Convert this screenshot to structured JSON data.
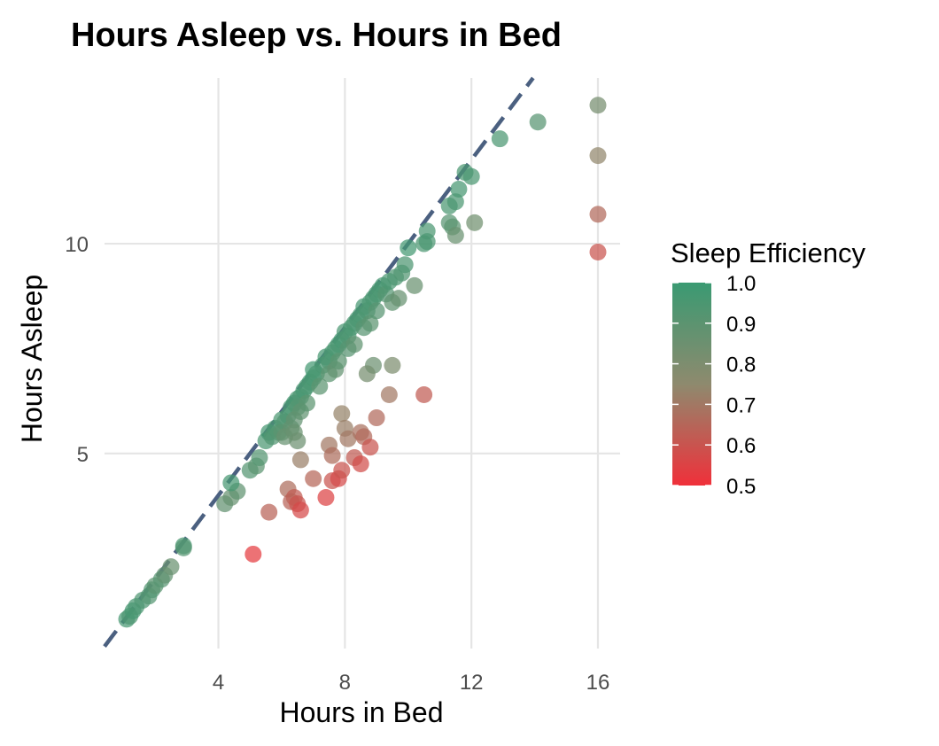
{
  "chart_data": {
    "type": "scatter",
    "title": "Hours Asleep vs. Hours in Bed",
    "xlabel": "Hours in Bed",
    "ylabel": "Hours Asleep",
    "xlim": [
      0.4,
      16.7
    ],
    "ylim": [
      0.35,
      13.95
    ],
    "x_ticks": [
      4,
      8,
      12,
      16
    ],
    "y_ticks": [
      5,
      10
    ],
    "grid": true,
    "reference_line": {
      "style": "dashed",
      "slope": 1,
      "intercept": 0,
      "color": "#4b6080"
    },
    "color_scale": {
      "name": "Sleep Efficiency",
      "min": 0.5,
      "max": 1.0,
      "low_color": "#f0303a",
      "mid_color": "#8e8a6e",
      "high_color": "#3a9a72",
      "ticks": [
        "0.5",
        "0.6",
        "0.7",
        "0.8",
        "0.9",
        "1.0"
      ],
      "legend_position": "right"
    },
    "points": [
      [
        1.1,
        1.05,
        0.96
      ],
      [
        1.2,
        1.12,
        0.94
      ],
      [
        1.3,
        1.25,
        0.96
      ],
      [
        1.4,
        1.35,
        0.95
      ],
      [
        1.6,
        1.5,
        0.94
      ],
      [
        1.8,
        1.6,
        0.92
      ],
      [
        1.9,
        1.75,
        0.93
      ],
      [
        2.0,
        1.85,
        0.9
      ],
      [
        2.2,
        2.0,
        0.91
      ],
      [
        2.3,
        2.1,
        0.88
      ],
      [
        2.5,
        2.3,
        0.86
      ],
      [
        2.9,
        2.8,
        0.95
      ],
      [
        2.9,
        2.75,
        0.92
      ],
      [
        4.2,
        3.8,
        0.88
      ],
      [
        4.4,
        3.95,
        0.87
      ],
      [
        4.6,
        4.1,
        0.89
      ],
      [
        4.4,
        4.3,
        0.96
      ],
      [
        5.0,
        4.6,
        0.92
      ],
      [
        5.2,
        4.7,
        0.9
      ],
      [
        5.1,
        2.6,
        0.53
      ],
      [
        5.3,
        4.9,
        0.92
      ],
      [
        5.5,
        5.3,
        0.95
      ],
      [
        5.6,
        5.5,
        0.96
      ],
      [
        5.7,
        5.4,
        0.93
      ],
      [
        5.8,
        5.6,
        0.95
      ],
      [
        5.9,
        5.5,
        0.92
      ],
      [
        6.0,
        5.8,
        0.95
      ],
      [
        6.1,
        5.75,
        0.93
      ],
      [
        6.0,
        5.5,
        0.9
      ],
      [
        6.2,
        5.9,
        0.94
      ],
      [
        6.3,
        6.1,
        0.95
      ],
      [
        6.4,
        6.2,
        0.96
      ],
      [
        6.5,
        6.3,
        0.95
      ],
      [
        6.6,
        6.35,
        0.94
      ],
      [
        6.5,
        6.1,
        0.92
      ],
      [
        6.4,
        5.8,
        0.88
      ],
      [
        6.7,
        6.5,
        0.96
      ],
      [
        6.8,
        6.6,
        0.95
      ],
      [
        6.9,
        6.7,
        0.95
      ],
      [
        6.6,
        6.0,
        0.89
      ],
      [
        6.8,
        6.2,
        0.9
      ],
      [
        6.3,
        5.6,
        0.88
      ],
      [
        6.1,
        5.4,
        0.87
      ],
      [
        6.4,
        5.5,
        0.86
      ],
      [
        6.5,
        5.3,
        0.85
      ],
      [
        7.0,
        6.8,
        0.96
      ],
      [
        7.0,
        7.0,
        0.97
      ],
      [
        7.1,
        6.9,
        0.95
      ],
      [
        7.2,
        6.6,
        0.9
      ],
      [
        7.3,
        7.1,
        0.95
      ],
      [
        7.4,
        7.3,
        0.96
      ],
      [
        7.5,
        7.2,
        0.94
      ],
      [
        7.6,
        7.4,
        0.95
      ],
      [
        7.7,
        7.5,
        0.95
      ],
      [
        7.8,
        7.6,
        0.95
      ],
      [
        7.9,
        7.7,
        0.96
      ],
      [
        7.5,
        6.9,
        0.9
      ],
      [
        7.7,
        7.0,
        0.88
      ],
      [
        7.8,
        7.2,
        0.9
      ],
      [
        8.0,
        7.9,
        0.95
      ],
      [
        8.1,
        7.8,
        0.94
      ],
      [
        8.2,
        8.0,
        0.95
      ],
      [
        8.3,
        8.1,
        0.95
      ],
      [
        8.4,
        8.2,
        0.95
      ],
      [
        8.1,
        7.5,
        0.91
      ],
      [
        8.3,
        7.6,
        0.89
      ],
      [
        8.5,
        8.3,
        0.95
      ],
      [
        8.6,
        8.5,
        0.96
      ],
      [
        8.7,
        8.4,
        0.94
      ],
      [
        8.8,
        8.6,
        0.95
      ],
      [
        8.9,
        8.7,
        0.95
      ],
      [
        9.0,
        8.8,
        0.95
      ],
      [
        8.6,
        8.0,
        0.91
      ],
      [
        8.8,
        8.1,
        0.9
      ],
      [
        9.0,
        8.4,
        0.91
      ],
      [
        9.1,
        8.9,
        0.95
      ],
      [
        9.2,
        9.0,
        0.96
      ],
      [
        9.3,
        8.8,
        0.92
      ],
      [
        9.4,
        9.1,
        0.95
      ],
      [
        9.5,
        8.6,
        0.89
      ],
      [
        9.6,
        9.2,
        0.94
      ],
      [
        9.7,
        8.7,
        0.87
      ],
      [
        9.8,
        9.3,
        0.93
      ],
      [
        9.9,
        9.5,
        0.94
      ],
      [
        10.0,
        9.9,
        0.97
      ],
      [
        10.2,
        9.0,
        0.86
      ],
      [
        10.5,
        10.0,
        0.95
      ],
      [
        10.6,
        10.05,
        0.95
      ],
      [
        10.6,
        10.3,
        0.95
      ],
      [
        11.3,
        10.5,
        0.91
      ],
      [
        11.4,
        10.4,
        0.9
      ],
      [
        11.5,
        10.2,
        0.86
      ],
      [
        11.3,
        10.9,
        0.95
      ],
      [
        11.6,
        11.3,
        0.96
      ],
      [
        11.5,
        11.0,
        0.95
      ],
      [
        11.8,
        11.7,
        0.95
      ],
      [
        12.0,
        11.6,
        0.95
      ],
      [
        12.1,
        10.5,
        0.84
      ],
      [
        12.9,
        12.5,
        0.95
      ],
      [
        14.1,
        12.9,
        0.91
      ],
      [
        16.0,
        13.3,
        0.82
      ],
      [
        16.0,
        12.1,
        0.74
      ],
      [
        16.0,
        10.7,
        0.66
      ],
      [
        16.0,
        9.8,
        0.6
      ],
      [
        8.9,
        7.1,
        0.85
      ],
      [
        9.5,
        7.1,
        0.8
      ],
      [
        8.7,
        6.9,
        0.82
      ],
      [
        9.4,
        6.4,
        0.7
      ],
      [
        10.5,
        6.4,
        0.62
      ],
      [
        7.9,
        5.95,
        0.73
      ],
      [
        8.0,
        5.6,
        0.72
      ],
      [
        8.1,
        5.35,
        0.7
      ],
      [
        9.0,
        5.85,
        0.66
      ],
      [
        8.5,
        5.5,
        0.68
      ],
      [
        8.6,
        5.4,
        0.66
      ],
      [
        8.8,
        5.15,
        0.6
      ],
      [
        7.5,
        5.2,
        0.7
      ],
      [
        7.6,
        4.95,
        0.67
      ],
      [
        8.3,
        4.9,
        0.62
      ],
      [
        8.5,
        4.75,
        0.58
      ],
      [
        6.6,
        4.85,
        0.72
      ],
      [
        7.0,
        4.4,
        0.65
      ],
      [
        7.6,
        4.35,
        0.6
      ],
      [
        7.8,
        4.4,
        0.57
      ],
      [
        7.9,
        4.6,
        0.6
      ],
      [
        6.2,
        4.15,
        0.67
      ],
      [
        6.4,
        3.95,
        0.62
      ],
      [
        6.3,
        3.85,
        0.64
      ],
      [
        6.5,
        3.8,
        0.6
      ],
      [
        6.6,
        3.65,
        0.57
      ],
      [
        7.4,
        3.95,
        0.55
      ],
      [
        5.6,
        3.6,
        0.64
      ]
    ]
  }
}
